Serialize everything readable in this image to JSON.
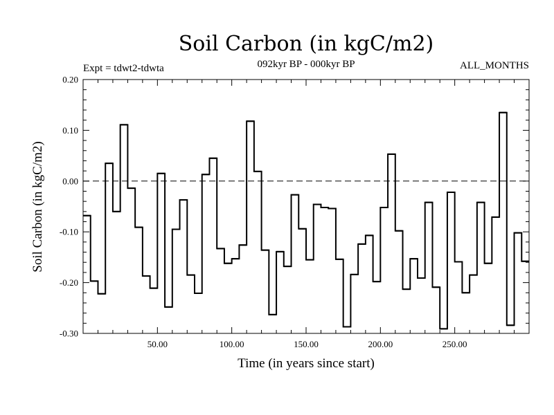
{
  "chart_data": {
    "type": "line",
    "style": "step",
    "title": "Soil Carbon (in kgC/m2)",
    "experiment_label": "Expt = tdwt2-tdwta",
    "period_label": "092kyr BP - 000kyr BP",
    "season_label": "ALL_MONTHS",
    "xlabel": "Time (in years since start)",
    "ylabel": "Soil Carbon (in kgC/m2)",
    "xlim": [
      0,
      300
    ],
    "ylim": [
      -0.3,
      0.2
    ],
    "x_ticks": [
      50,
      100,
      150,
      200,
      250
    ],
    "x_tick_labels": [
      "50.00",
      "100.00",
      "150.00",
      "200.00",
      "250.00"
    ],
    "y_ticks": [
      -0.3,
      -0.2,
      -0.1,
      0.0,
      0.1,
      0.2
    ],
    "y_tick_labels": [
      "-0.30",
      "-0.20",
      "-0.10",
      "0.00",
      "0.10",
      "0.20"
    ],
    "zero_line": "dashed",
    "step_width": 5,
    "x_start": 0,
    "values": [
      -0.068,
      -0.197,
      -0.222,
      0.035,
      -0.06,
      0.111,
      -0.014,
      -0.091,
      -0.187,
      -0.211,
      0.015,
      -0.248,
      -0.095,
      -0.037,
      -0.185,
      -0.221,
      0.013,
      0.045,
      -0.133,
      -0.162,
      -0.153,
      -0.126,
      0.118,
      0.019,
      -0.136,
      -0.263,
      -0.139,
      -0.168,
      -0.027,
      -0.094,
      -0.155,
      -0.046,
      -0.052,
      -0.054,
      -0.154,
      -0.287,
      -0.184,
      -0.124,
      -0.107,
      -0.198,
      -0.052,
      0.053,
      -0.098,
      -0.213,
      -0.153,
      -0.191,
      -0.042,
      -0.209,
      -0.291,
      -0.022,
      -0.159,
      -0.22,
      -0.185,
      -0.042,
      -0.162,
      -0.071,
      0.135,
      -0.284,
      -0.102,
      -0.158
    ]
  }
}
